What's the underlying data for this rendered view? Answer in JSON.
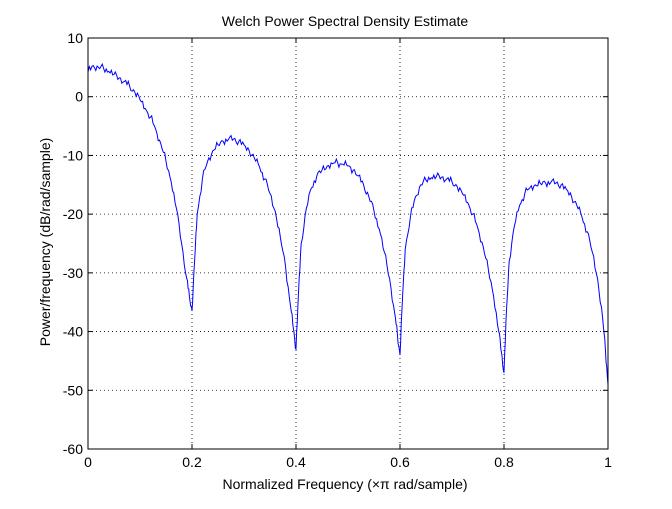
{
  "chart_data": {
    "type": "line",
    "title": "Welch Power Spectral Density Estimate",
    "xlabel": "Normalized Frequency  (×π rad/sample)",
    "ylabel": "Power/frequency (dB/rad/sample)",
    "xlim": [
      0,
      1
    ],
    "ylim": [
      -60,
      10
    ],
    "xticks": [
      0,
      0.2,
      0.4,
      0.6,
      0.8,
      1
    ],
    "xtick_labels": [
      "0",
      "0.2",
      "0.4",
      "0.6",
      "0.8",
      "1"
    ],
    "yticks": [
      -60,
      -50,
      -40,
      -30,
      -20,
      -10,
      0,
      10
    ],
    "ytick_labels": [
      "-60",
      "-50",
      "-40",
      "-30",
      "-20",
      "-10",
      "0",
      "10"
    ],
    "grid": true,
    "grid_style": "dotted",
    "line_color": "#0000ff",
    "x": [
      0,
      0.01,
      0.02,
      0.03,
      0.04,
      0.05,
      0.06,
      0.07,
      0.08,
      0.09,
      0.1,
      0.11,
      0.12,
      0.13,
      0.14,
      0.15,
      0.16,
      0.17,
      0.18,
      0.19,
      0.195,
      0.2,
      0.205,
      0.21,
      0.22,
      0.23,
      0.24,
      0.25,
      0.26,
      0.27,
      0.28,
      0.29,
      0.3,
      0.31,
      0.32,
      0.33,
      0.34,
      0.35,
      0.36,
      0.37,
      0.38,
      0.39,
      0.395,
      0.4,
      0.405,
      0.41,
      0.42,
      0.43,
      0.44,
      0.45,
      0.46,
      0.47,
      0.48,
      0.49,
      0.5,
      0.51,
      0.52,
      0.53,
      0.54,
      0.55,
      0.56,
      0.57,
      0.58,
      0.59,
      0.595,
      0.6,
      0.605,
      0.61,
      0.62,
      0.63,
      0.64,
      0.65,
      0.66,
      0.67,
      0.68,
      0.69,
      0.7,
      0.71,
      0.72,
      0.73,
      0.74,
      0.75,
      0.76,
      0.77,
      0.78,
      0.79,
      0.795,
      0.8,
      0.805,
      0.81,
      0.82,
      0.83,
      0.84,
      0.85,
      0.86,
      0.87,
      0.88,
      0.89,
      0.9,
      0.91,
      0.92,
      0.93,
      0.94,
      0.95,
      0.96,
      0.97,
      0.98,
      0.99,
      0.995,
      1.0
    ],
    "y": [
      4.2,
      5.3,
      5.0,
      4.8,
      4.3,
      3.8,
      3.2,
      2.6,
      1.8,
      0.8,
      -0.5,
      -2.0,
      -3.5,
      -5.5,
      -8.0,
      -11.0,
      -14.5,
      -19.0,
      -25.0,
      -31.0,
      -34.0,
      -36.5,
      -28.0,
      -20.0,
      -14.0,
      -11.0,
      -9.2,
      -8.2,
      -7.6,
      -7.3,
      -7.2,
      -7.6,
      -8.2,
      -9.2,
      -10.5,
      -12.0,
      -14.0,
      -16.5,
      -19.5,
      -24.0,
      -29.0,
      -36.0,
      -39.5,
      -43.0,
      -33.0,
      -25.0,
      -19.0,
      -15.5,
      -13.5,
      -12.5,
      -11.8,
      -11.4,
      -11.2,
      -11.5,
      -11.8,
      -12.5,
      -13.5,
      -15.0,
      -17.0,
      -19.5,
      -22.5,
      -26.5,
      -31.0,
      -37.0,
      -40.5,
      -44.0,
      -34.0,
      -26.0,
      -20.5,
      -17.0,
      -15.0,
      -14.2,
      -13.8,
      -13.6,
      -13.7,
      -14.0,
      -14.5,
      -15.3,
      -16.5,
      -18.0,
      -20.0,
      -22.5,
      -25.5,
      -29.5,
      -34.0,
      -40.0,
      -43.5,
      -47.0,
      -36.0,
      -28.0,
      -22.0,
      -18.5,
      -16.5,
      -15.5,
      -15.0,
      -14.8,
      -14.7,
      -14.6,
      -14.7,
      -15.0,
      -15.8,
      -17.0,
      -18.5,
      -20.5,
      -23.0,
      -26.5,
      -31.0,
      -38.0,
      -43.0,
      -49.0
    ]
  }
}
